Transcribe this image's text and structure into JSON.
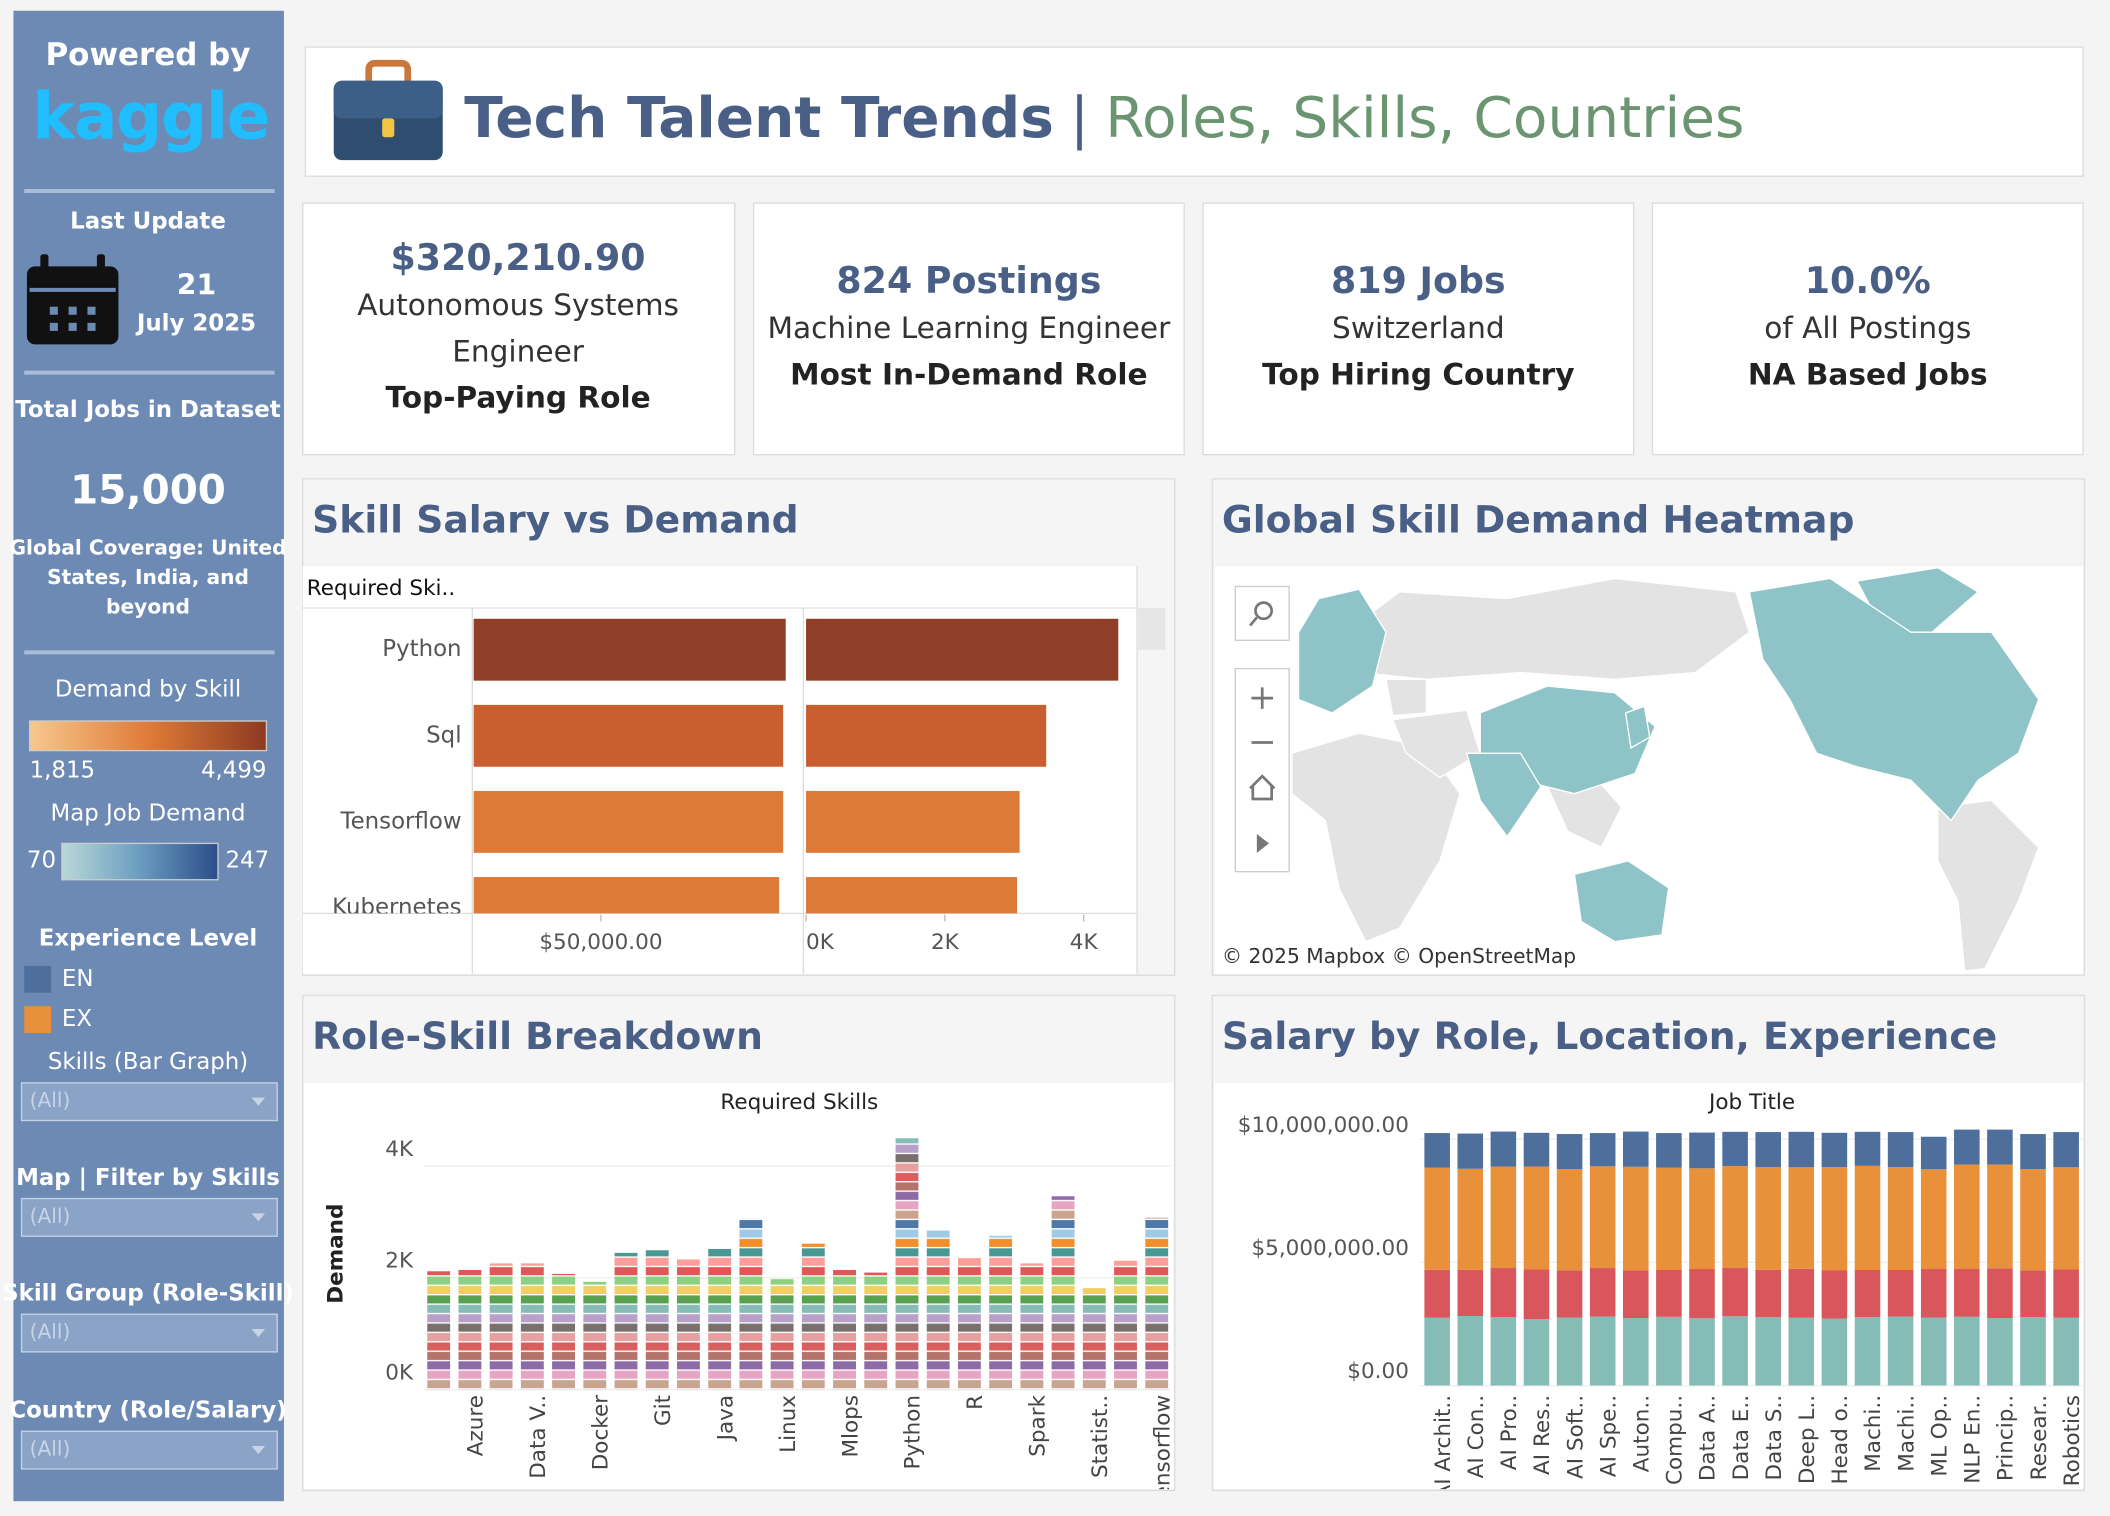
{
  "sidebar": {
    "powered_by": "Powered by",
    "brand": "kaggle",
    "last_update_label": "Last Update",
    "update_day": "21",
    "update_month_year": "July 2025",
    "total_jobs_label": "Total Jobs in Dataset",
    "total_jobs": "15,000",
    "coverage_lines": [
      "Global Coverage: United",
      "States, India, and",
      "beyond"
    ],
    "demand_legend": {
      "title": "Demand by Skill",
      "min": {
        "value": 1815,
        "label": "1,815"
      },
      "max": {
        "value": 4499,
        "label": "4,499"
      },
      "colors": [
        "#f6c88e",
        "#e07b38",
        "#8c3a22"
      ]
    },
    "map_legend": {
      "title": "Map Job Demand",
      "min": 70,
      "max": 247,
      "colors": [
        "#b9d8d8",
        "#6b9cbf",
        "#2b4d89"
      ]
    },
    "experience_legend": {
      "title": "Experience Level",
      "items": [
        {
          "name": "EN",
          "color": "#4e6e9c"
        },
        {
          "name": "EX",
          "color": "#e8913a"
        }
      ]
    },
    "filters": [
      {
        "label": "Skills (Bar Graph)",
        "value": "(All)"
      },
      {
        "label": "Map | Filter by Skills",
        "value": "(All)"
      },
      {
        "label": "Skill Group (Role-Skill)",
        "value": "(All)"
      },
      {
        "label": "Country (Role/Salary)",
        "value": "(All)"
      }
    ]
  },
  "header": {
    "title": "Tech Talent Trends",
    "separator": "|",
    "subtitle": "Roles, Skills, Countries"
  },
  "kpis": [
    {
      "value": "$320,210.90",
      "lines": [
        "Autonomous Systems",
        "Engineer"
      ],
      "caption": "Top-Paying Role"
    },
    {
      "value": "824  Postings",
      "lines": [
        "Machine Learning Engineer"
      ],
      "caption": "Most In-Demand Role"
    },
    {
      "value": "819 Jobs",
      "lines": [
        "Switzerland"
      ],
      "caption": "Top Hiring Country"
    },
    {
      "value": "10.0%",
      "lines": [
        "of All Postings"
      ],
      "caption": "NA Based Jobs"
    }
  ],
  "chart_data": [
    {
      "type": "bar",
      "orientation": "horizontal",
      "title": "Skill Salary vs Demand",
      "header": "Required Ski..",
      "categories": [
        "Python",
        "Sql",
        "Tensorflow",
        "Kubernetes"
      ],
      "colors": [
        "#8f3f27",
        "#c95e2f",
        "#de7a37",
        "#de7a37"
      ],
      "series": [
        {
          "values": [
            122600,
            121600,
            121600,
            120000
          ],
          "xlim": [
            0,
            129000
          ],
          "xticks": [
            {
              "value": 50000,
              "label": "$50,000.00"
            }
          ]
        },
        {
          "values": [
            4499,
            3460,
            3077,
            3040
          ],
          "xlim": [
            0,
            4750
          ],
          "xticks": [
            {
              "value": 0,
              "label": "0K"
            },
            {
              "value": 2000,
              "label": "2K"
            },
            {
              "value": 4000,
              "label": "4K"
            }
          ]
        }
      ]
    },
    {
      "type": "map",
      "title": "Global Skill Demand Heatmap",
      "attribution": "© 2025 Mapbox  © OpenStreetMap",
      "land_color": "#e3e3e3",
      "highlight_color": "#8ec4c8"
    },
    {
      "type": "bar",
      "orientation": "vertical",
      "title": "Role-Skill Breakdown",
      "x_header": "Required Skills",
      "y_label": "Demand",
      "categories": [
        null,
        "Azure",
        null,
        "Data V..",
        null,
        "Docker",
        null,
        "Git",
        null,
        "Java",
        null,
        "Linux",
        null,
        "Mlops",
        null,
        "Python",
        null,
        "R",
        null,
        "Spark",
        null,
        "Statist..",
        null,
        "Tensorflow"
      ],
      "values": [
        2118,
        2141,
        2259,
        2259,
        2070,
        1929,
        2447,
        2494,
        2329,
        2518,
        3059,
        1976,
        2612,
        2141,
        2094,
        4499,
        2847,
        2353,
        2753,
        2259,
        3460,
        1815,
        2306,
        3077
      ],
      "ylim": [
        0,
        4600
      ],
      "yticks": [
        {
          "value": 0,
          "label": "0K"
        },
        {
          "value": 2000,
          "label": "2K"
        },
        {
          "value": 4000,
          "label": "4K"
        }
      ],
      "grid": true
    },
    {
      "type": "stacked_bar",
      "title": "Salary by Role, Location, Experience",
      "x_header": "Job Title",
      "categories": [
        "AI Archit..",
        "AI Con..",
        "AI Pro..",
        "AI Res..",
        "AI Soft..",
        "AI Spe..",
        "Auton..",
        "Compu..",
        "Data A..",
        "Data E..",
        "Data S..",
        "Deep L..",
        "Head o..",
        "Machi..",
        "Machi..",
        "ML Op..",
        "NLP En..",
        "Princip..",
        "Resear..",
        "Robotics"
      ],
      "series": [
        {
          "color": "#86bcb6",
          "values": [
            2750000,
            2820000,
            2780000,
            2700000,
            2760000,
            2800000,
            2740000,
            2790000,
            2730000,
            2810000,
            2770000,
            2750000,
            2720000,
            2780000,
            2800000,
            2760000,
            2790000,
            2740000,
            2780000,
            2750000
          ]
        },
        {
          "color": "#d9565c",
          "values": [
            1950000,
            1880000,
            1990000,
            2010000,
            1920000,
            1970000,
            1940000,
            1900000,
            2000000,
            1960000,
            1930000,
            1990000,
            1950000,
            1910000,
            1890000,
            1970000,
            1940000,
            2020000,
            1900000,
            1960000
          ]
        },
        {
          "name": "EX",
          "color": "#e8913a",
          "values": [
            4150000,
            4100000,
            4120000,
            4180000,
            4110000,
            4130000,
            4200000,
            4160000,
            4090000,
            4140000,
            4170000,
            4120000,
            4200000,
            4230000,
            4180000,
            4050000,
            4240000,
            4210000,
            4110000,
            4150000
          ]
        },
        {
          "name": "EN",
          "color": "#4e6e9c",
          "values": [
            1400000,
            1430000,
            1420000,
            1370000,
            1420000,
            1350000,
            1430000,
            1400000,
            1450000,
            1390000,
            1420000,
            1440000,
            1390000,
            1380000,
            1420000,
            1320000,
            1420000,
            1420000,
            1420000,
            1430000
          ]
        }
      ],
      "ylim": [
        0,
        10650000
      ],
      "yticks": [
        {
          "value": 0,
          "label": "$0.00"
        },
        {
          "value": 5000000,
          "label": "$5,000,000.00"
        },
        {
          "value": 10000000,
          "label": "$10,000,000.00"
        }
      ],
      "grid": true
    }
  ]
}
